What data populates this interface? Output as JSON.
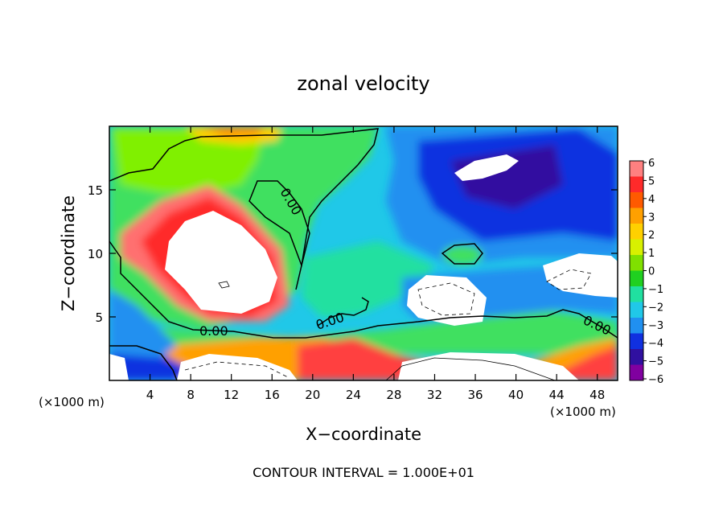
{
  "chart_data": {
    "type": "heatmap",
    "title": "zonal velocity",
    "xlabel": "X−coordinate",
    "ylabel": "Z−coordinate",
    "x_unit_label": "(×1000 m)",
    "z_unit_label": "(×1000 m)",
    "xlim": [
      0,
      50
    ],
    "ylim": [
      0,
      20
    ],
    "x_ticks": [
      4,
      8,
      12,
      16,
      20,
      24,
      28,
      32,
      36,
      40,
      44,
      48
    ],
    "x_tick_labels": [
      "4",
      "8",
      "12",
      "16",
      "20",
      "24",
      "28",
      "32",
      "36",
      "40",
      "44",
      "48"
    ],
    "y_ticks": [
      5,
      10,
      15
    ],
    "y_tick_labels": [
      "5",
      "10",
      "15"
    ],
    "colorbar": {
      "min": -6,
      "max": 6,
      "labels": [
        "6",
        "5",
        "4",
        "3",
        "2",
        "1",
        "0",
        "−1",
        "−2",
        "−3",
        "−4",
        "−5",
        "−6"
      ],
      "levels": [
        6,
        5,
        4,
        3,
        2,
        1,
        0,
        -1,
        -2,
        -3,
        -4,
        -5,
        -6
      ],
      "colors": [
        "#ff8080",
        "#ff2a2a",
        "#ff5a00",
        "#ffa000",
        "#ffd000",
        "#d8f000",
        "#80e000",
        "#20d020",
        "#20e0a0",
        "#20c8e8",
        "#2090f0",
        "#1030e0",
        "#3010a0",
        "#8000a0"
      ]
    },
    "contour_labels": [
      "0.00",
      "0.00",
      "0.00",
      "0.00"
    ],
    "footnote": "CONTOUR INTERVAL = 1.000E+01"
  }
}
